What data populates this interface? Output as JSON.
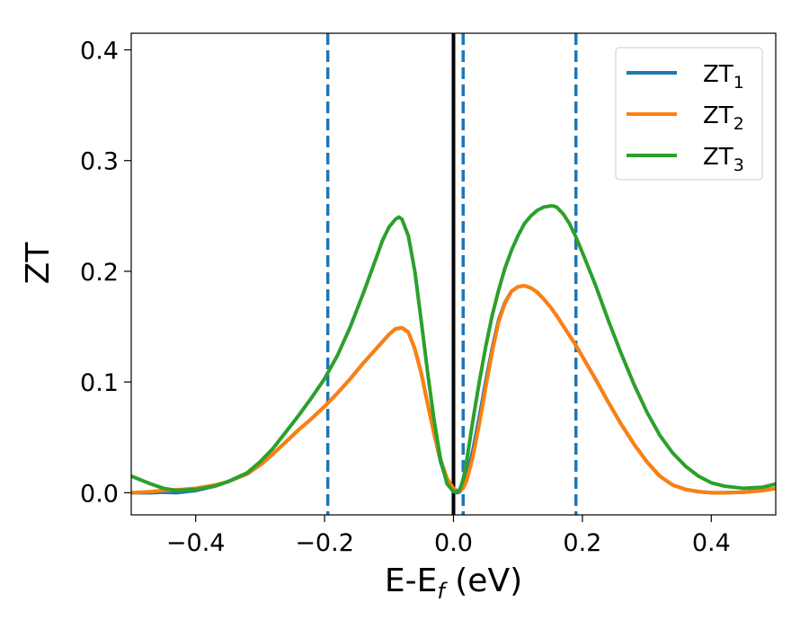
{
  "chart_data": {
    "type": "line",
    "xlabel": "E-E",
    "xlabel_sub": "f",
    "xlabel_unit": " (eV)",
    "ylabel": "ZT",
    "xlim": [
      -0.5,
      0.5
    ],
    "ylim": [
      -0.02,
      0.415
    ],
    "xticks": [
      -0.4,
      -0.2,
      0.0,
      0.2,
      0.4
    ],
    "xtick_labels": [
      "−0.4",
      "−0.2",
      "0.0",
      "0.2",
      "0.4"
    ],
    "yticks": [
      0.0,
      0.1,
      0.2,
      0.3,
      0.4
    ],
    "ytick_labels": [
      "0.0",
      "0.1",
      "0.2",
      "0.3",
      "0.4"
    ],
    "grid": false,
    "legend_position": "top-right",
    "vlines": [
      {
        "x": 0.0,
        "style": "solid",
        "color": "#000000"
      },
      {
        "x": -0.195,
        "style": "dashed",
        "color": "#1f77b4"
      },
      {
        "x": 0.015,
        "style": "dashed",
        "color": "#1f77b4"
      },
      {
        "x": 0.19,
        "style": "dashed",
        "color": "#1f77b4"
      }
    ],
    "series": [
      {
        "name": "ZT",
        "sub": "1",
        "color": "#1f77b4",
        "x": [
          -0.5,
          -0.47,
          -0.45,
          -0.43,
          -0.4,
          -0.37,
          -0.35,
          -0.32,
          -0.3,
          -0.28,
          -0.26,
          -0.24,
          -0.22,
          -0.2,
          -0.18,
          -0.16,
          -0.14,
          -0.12,
          -0.1,
          -0.09,
          -0.08,
          -0.07,
          -0.06,
          -0.05,
          -0.04,
          -0.03,
          -0.02,
          -0.01,
          0.0,
          0.005,
          0.01,
          0.015,
          0.02,
          0.03,
          0.04,
          0.05,
          0.06,
          0.07,
          0.08,
          0.09,
          0.1,
          0.11,
          0.12,
          0.13,
          0.14,
          0.15,
          0.16,
          0.17,
          0.18,
          0.19,
          0.2,
          0.22,
          0.24,
          0.26,
          0.28,
          0.3,
          0.32,
          0.34,
          0.36,
          0.38,
          0.4,
          0.42,
          0.45,
          0.48,
          0.5
        ],
        "y": [
          0.0,
          0.0,
          0.0005,
          0.0,
          0.002,
          0.006,
          0.01,
          0.017,
          0.025,
          0.035,
          0.046,
          0.057,
          0.067,
          0.078,
          0.09,
          0.103,
          0.117,
          0.13,
          0.143,
          0.148,
          0.149,
          0.145,
          0.13,
          0.108,
          0.08,
          0.053,
          0.028,
          0.01,
          0.001,
          0.0,
          0.001,
          0.006,
          0.014,
          0.038,
          0.068,
          0.1,
          0.13,
          0.156,
          0.172,
          0.182,
          0.186,
          0.187,
          0.185,
          0.181,
          0.175,
          0.168,
          0.16,
          0.151,
          0.142,
          0.133,
          0.123,
          0.103,
          0.082,
          0.062,
          0.044,
          0.028,
          0.015,
          0.007,
          0.003,
          0.001,
          0.0,
          0.0,
          0.0005,
          0.002,
          0.004
        ]
      },
      {
        "name": "ZT",
        "sub": "2",
        "color": "#ff7f0e",
        "x": [
          -0.5,
          -0.47,
          -0.45,
          -0.42,
          -0.4,
          -0.37,
          -0.35,
          -0.32,
          -0.3,
          -0.28,
          -0.26,
          -0.24,
          -0.22,
          -0.2,
          -0.18,
          -0.16,
          -0.14,
          -0.12,
          -0.1,
          -0.09,
          -0.08,
          -0.07,
          -0.06,
          -0.05,
          -0.04,
          -0.03,
          -0.02,
          -0.01,
          0.0,
          0.005,
          0.01,
          0.015,
          0.02,
          0.03,
          0.04,
          0.05,
          0.06,
          0.07,
          0.08,
          0.09,
          0.1,
          0.11,
          0.12,
          0.13,
          0.14,
          0.15,
          0.16,
          0.17,
          0.18,
          0.19,
          0.2,
          0.22,
          0.24,
          0.26,
          0.28,
          0.3,
          0.32,
          0.34,
          0.36,
          0.38,
          0.4,
          0.42,
          0.45,
          0.48,
          0.5
        ],
        "y": [
          0.0,
          0.001,
          0.002,
          0.003,
          0.004,
          0.007,
          0.01,
          0.017,
          0.025,
          0.035,
          0.046,
          0.057,
          0.067,
          0.078,
          0.09,
          0.103,
          0.117,
          0.13,
          0.143,
          0.148,
          0.149,
          0.145,
          0.13,
          0.108,
          0.08,
          0.053,
          0.03,
          0.013,
          0.004,
          0.002,
          0.002,
          0.004,
          0.01,
          0.032,
          0.062,
          0.095,
          0.127,
          0.154,
          0.171,
          0.182,
          0.186,
          0.187,
          0.185,
          0.181,
          0.175,
          0.168,
          0.16,
          0.151,
          0.142,
          0.133,
          0.123,
          0.103,
          0.082,
          0.062,
          0.044,
          0.028,
          0.015,
          0.007,
          0.003,
          0.001,
          0.0,
          0.0,
          0.0005,
          0.002,
          0.004
        ]
      },
      {
        "name": "ZT",
        "sub": "3",
        "color": "#2ca02c",
        "x": [
          -0.5,
          -0.47,
          -0.45,
          -0.43,
          -0.4,
          -0.37,
          -0.35,
          -0.32,
          -0.3,
          -0.28,
          -0.26,
          -0.24,
          -0.22,
          -0.2,
          -0.18,
          -0.16,
          -0.14,
          -0.12,
          -0.11,
          -0.1,
          -0.09,
          -0.085,
          -0.08,
          -0.07,
          -0.06,
          -0.05,
          -0.04,
          -0.03,
          -0.02,
          -0.01,
          0.0,
          0.005,
          0.01,
          0.015,
          0.02,
          0.03,
          0.04,
          0.05,
          0.06,
          0.07,
          0.08,
          0.09,
          0.1,
          0.11,
          0.12,
          0.13,
          0.14,
          0.15,
          0.155,
          0.16,
          0.17,
          0.18,
          0.19,
          0.2,
          0.22,
          0.24,
          0.26,
          0.28,
          0.3,
          0.32,
          0.34,
          0.36,
          0.38,
          0.4,
          0.42,
          0.45,
          0.48,
          0.5
        ],
        "y": [
          0.015,
          0.008,
          0.004,
          0.002,
          0.003,
          0.006,
          0.01,
          0.018,
          0.028,
          0.04,
          0.055,
          0.07,
          0.086,
          0.103,
          0.124,
          0.15,
          0.18,
          0.212,
          0.228,
          0.24,
          0.247,
          0.249,
          0.247,
          0.232,
          0.2,
          0.155,
          0.108,
          0.065,
          0.03,
          0.008,
          0.001,
          0.001,
          0.003,
          0.012,
          0.027,
          0.065,
          0.1,
          0.132,
          0.16,
          0.183,
          0.203,
          0.219,
          0.232,
          0.243,
          0.25,
          0.255,
          0.258,
          0.259,
          0.259,
          0.258,
          0.252,
          0.243,
          0.231,
          0.217,
          0.188,
          0.156,
          0.126,
          0.098,
          0.073,
          0.052,
          0.036,
          0.024,
          0.015,
          0.009,
          0.006,
          0.004,
          0.005,
          0.008
        ]
      }
    ]
  }
}
